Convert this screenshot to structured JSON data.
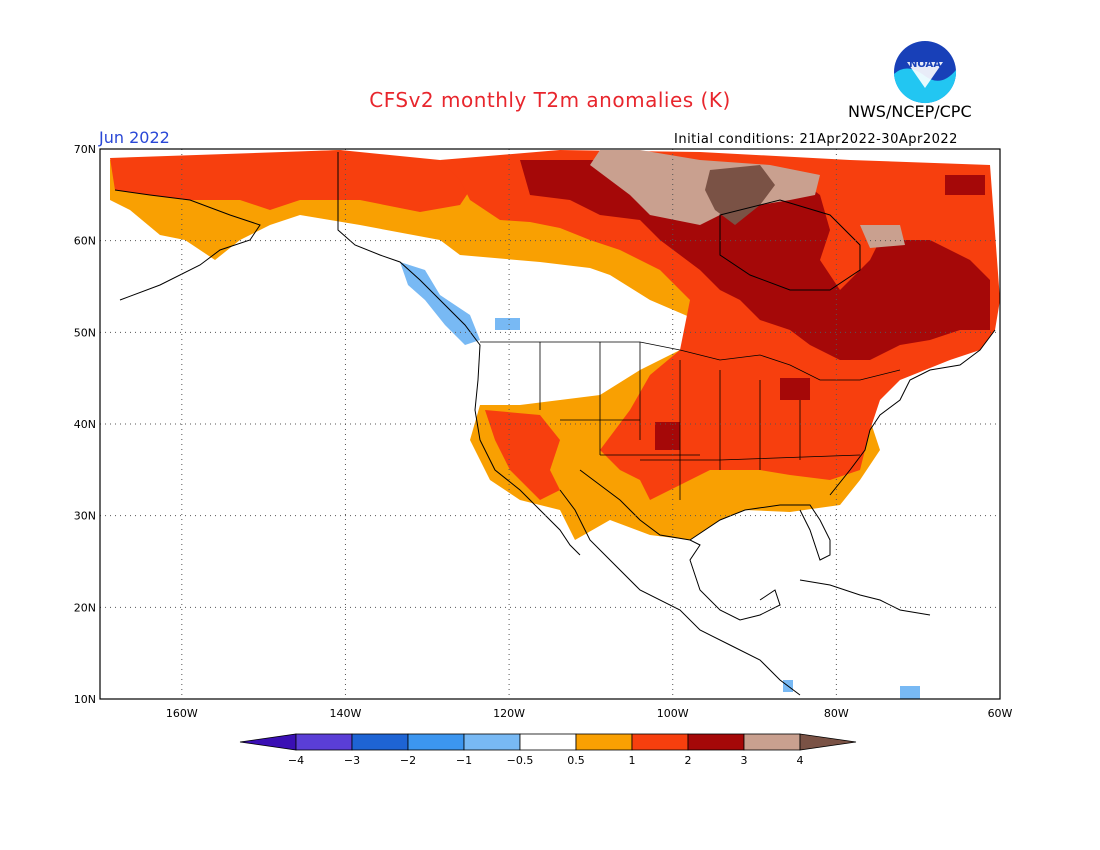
{
  "header": {
    "title": "CFSv2 monthly T2m anomalies (K)",
    "agency": "NWS/NCEP/CPC",
    "logo_text": "NOAA",
    "valid_month": "Jun 2022",
    "initial_conditions": "Initial conditions: 21Apr2022-30Apr2022"
  },
  "map": {
    "region": "North America",
    "lon_range": [
      -170,
      -60
    ],
    "lat_range": [
      10,
      70
    ],
    "lat_ticks": [
      "10N",
      "20N",
      "30N",
      "40N",
      "50N",
      "60N",
      "70N"
    ],
    "lon_ticks": [
      "160W",
      "140W",
      "120W",
      "100W",
      "80W",
      "60W"
    ],
    "gridlines": "dotted"
  },
  "colorbar": {
    "labels": [
      "-4",
      "-3",
      "-2",
      "-1",
      "-0.5",
      "0.5",
      "1",
      "2",
      "3",
      "4"
    ],
    "colors": [
      "#3a0fb4",
      "#5a3ed6",
      "#1e64d4",
      "#3c96f0",
      "#78b9f4",
      "#ffffff",
      "#f9a002",
      "#f73f0e",
      "#a50808",
      "#c9a08f",
      "#7a5245"
    ]
  }
}
